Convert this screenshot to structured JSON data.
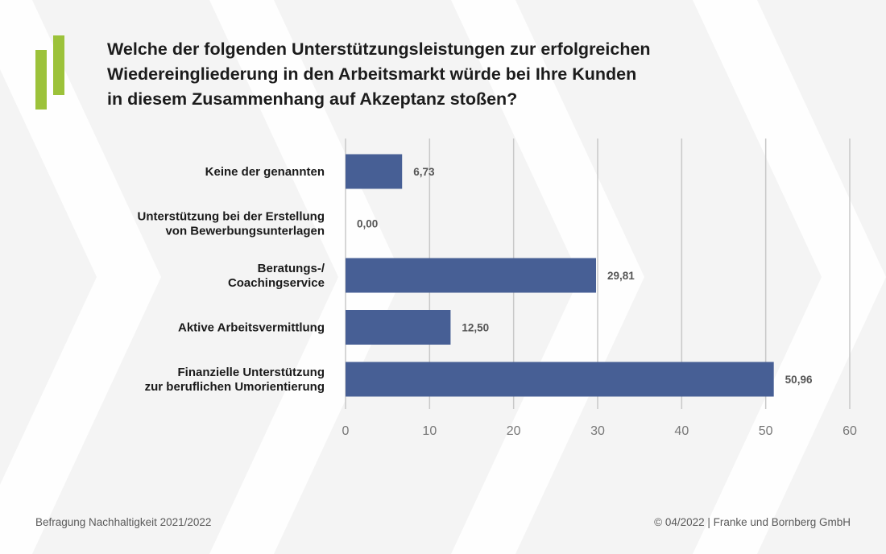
{
  "title_lines": [
    "Welche der folgenden Unterstützungsleistungen zur erfolgreichen",
    "Wiedereingliederung in den Arbeitsmarkt würde bei Ihre Kunden",
    "in diesem Zusammenhang auf Akzeptanz stoßen?"
  ],
  "footer": {
    "source": "Befragung Nachhaltigkeit 2021/2022",
    "copyright": "© 04/2022 | Franke und Bornberg GmbH"
  },
  "colors": {
    "bar": "#475f95",
    "logo": "#9cc23a",
    "grid": "#c8c8c8",
    "value_label": "#555555"
  },
  "chart_data": {
    "type": "bar",
    "orientation": "horizontal",
    "categories": [
      [
        "Keine der genannten"
      ],
      [
        "Unterstützung bei der Erstellung",
        "von Bewerbungsunterlagen"
      ],
      [
        "Beratungs-/",
        "Coachingservice"
      ],
      [
        "Aktive Arbeitsvermittlung"
      ],
      [
        "Finanzielle Unterstützung",
        "zur beruflichen Umorientierung"
      ]
    ],
    "values": [
      6.73,
      0.0,
      29.81,
      12.5,
      50.96
    ],
    "value_labels": [
      "6,73",
      "0,00",
      "29,81",
      "12,50",
      "50,96"
    ],
    "xlim": [
      0,
      60
    ],
    "xticks": [
      0,
      10,
      20,
      30,
      40,
      50,
      60
    ],
    "grid": true
  }
}
